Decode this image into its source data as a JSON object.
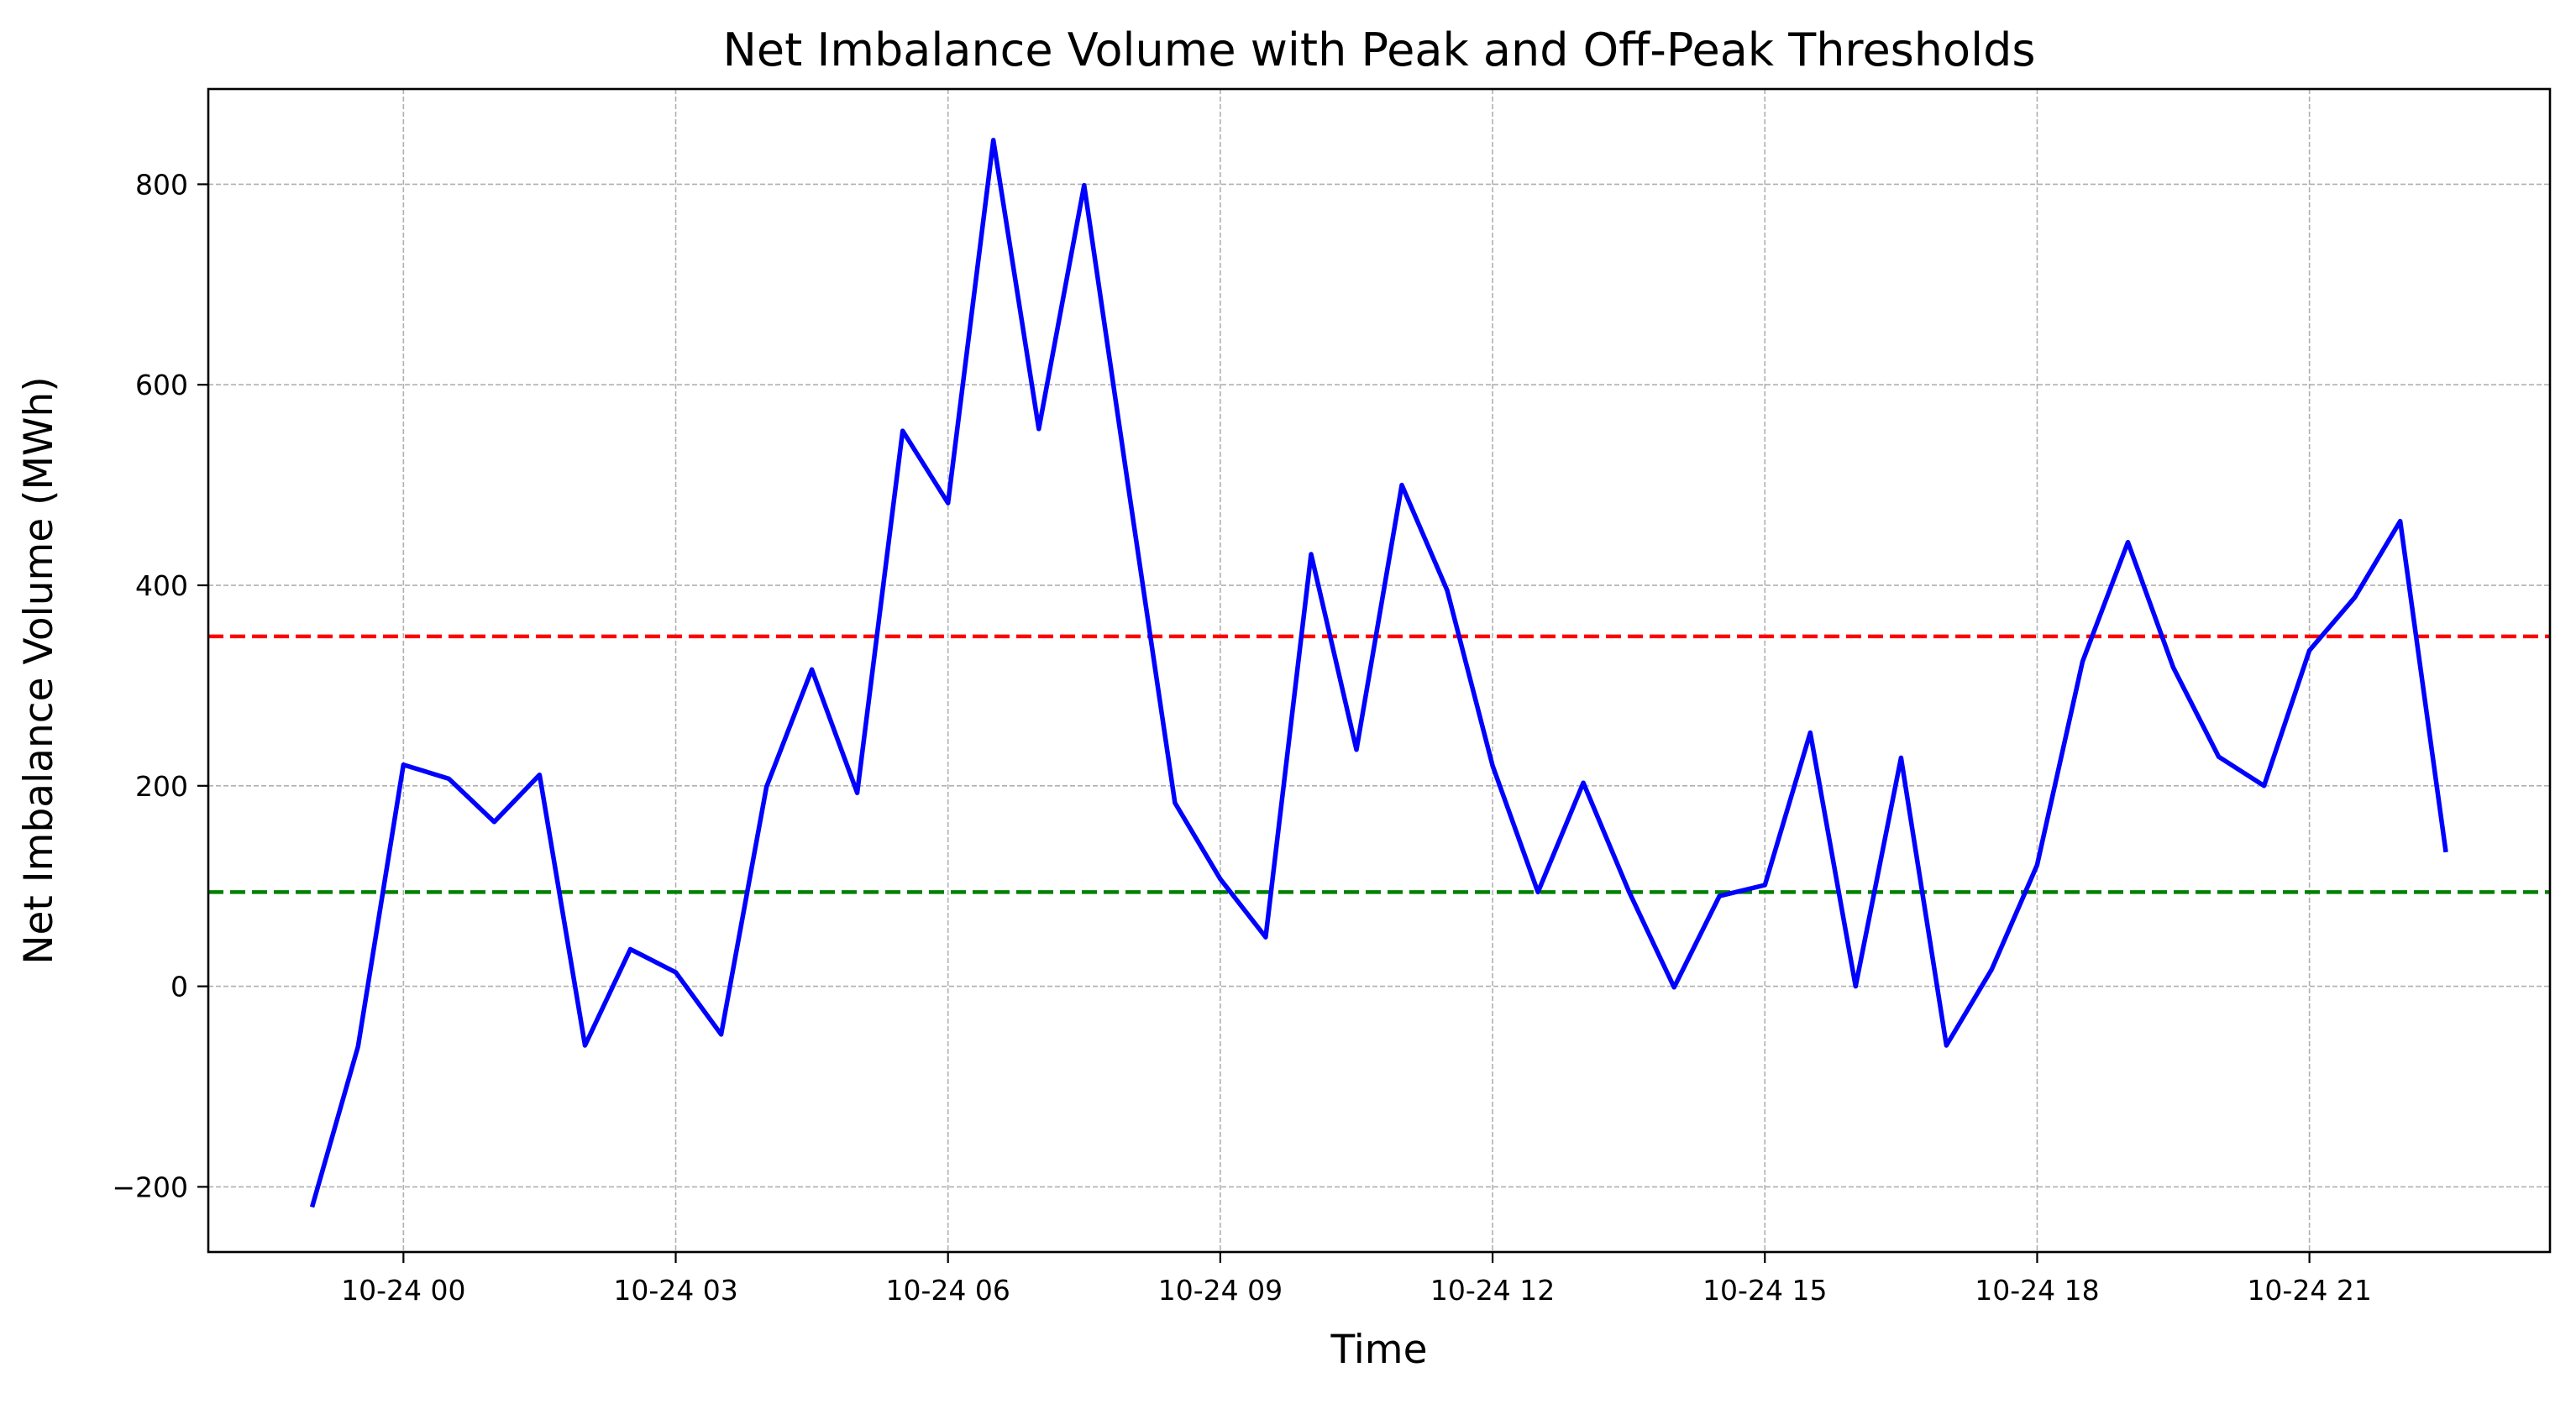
{
  "chart_data": {
    "type": "line",
    "title": "Net Imbalance Volume with Peak and Off-Peak Thresholds",
    "xlabel": "Time",
    "ylabel": "Net Imbalance Volume (MWh)",
    "xlim": [
      "2024-10-23 21:51",
      "2024-10-24 23:39"
    ],
    "ylim": [
      -265,
      895
    ],
    "x_ticks": [
      "10-24 00",
      "10-24 03",
      "10-24 06",
      "10-24 09",
      "10-24 12",
      "10-24 15",
      "10-24 18",
      "10-24 21"
    ],
    "y_ticks": [
      -200,
      0,
      200,
      400,
      600,
      800
    ],
    "grid": true,
    "series": [
      {
        "color": "#0000ff",
        "x": [
          "2024-10-23 23:00",
          "2024-10-23 23:30",
          "2024-10-24 00:00",
          "2024-10-24 00:30",
          "2024-10-24 01:00",
          "2024-10-24 01:30",
          "2024-10-24 02:00",
          "2024-10-24 02:30",
          "2024-10-24 03:00",
          "2024-10-24 03:30",
          "2024-10-24 04:00",
          "2024-10-24 04:30",
          "2024-10-24 05:00",
          "2024-10-24 05:30",
          "2024-10-24 06:00",
          "2024-10-24 06:30",
          "2024-10-24 07:00",
          "2024-10-24 07:30",
          "2024-10-24 08:00",
          "2024-10-24 08:30",
          "2024-10-24 09:00",
          "2024-10-24 09:30",
          "2024-10-24 10:00",
          "2024-10-24 10:30",
          "2024-10-24 11:00",
          "2024-10-24 11:30",
          "2024-10-24 12:00",
          "2024-10-24 12:30",
          "2024-10-24 13:00",
          "2024-10-24 13:30",
          "2024-10-24 14:00",
          "2024-10-24 14:30",
          "2024-10-24 15:00",
          "2024-10-24 15:30",
          "2024-10-24 16:00",
          "2024-10-24 16:30",
          "2024-10-24 17:00",
          "2024-10-24 17:30",
          "2024-10-24 18:00",
          "2024-10-24 18:30",
          "2024-10-24 19:00",
          "2024-10-24 19:30",
          "2024-10-24 20:00",
          "2024-10-24 20:30",
          "2024-10-24 21:00",
          "2024-10-24 21:30",
          "2024-10-24 22:00",
          "2024-10-24 22:30"
        ],
        "y": [
          -218,
          -60,
          221,
          207,
          164,
          211,
          -59,
          37,
          14,
          -48,
          199,
          316,
          193,
          554,
          482,
          844,
          556,
          799,
          490,
          183,
          107,
          49,
          431,
          236,
          500,
          395,
          220,
          94,
          203,
          95,
          -1,
          90,
          101,
          253,
          0,
          228,
          -59,
          17,
          121,
          324,
          443,
          318,
          229,
          200,
          335,
          388,
          464,
          136
        ]
      }
    ],
    "thresholds": [
      {
        "y": 349,
        "color": "#ff0000"
      },
      {
        "y": 94,
        "color": "#008000"
      }
    ]
  }
}
